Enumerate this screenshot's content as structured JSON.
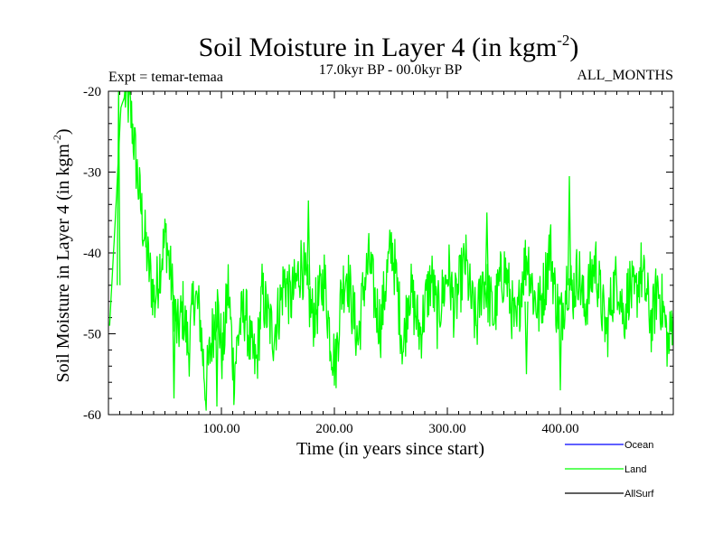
{
  "chart_data": {
    "type": "line",
    "title": "Soil Moisture in Layer 4 (in kgm",
    "title_sup": "-2",
    "title_close": ")",
    "subtitle_left": "Expt = temar-temaa",
    "subtitle_center": "17.0kyr BP - 00.0kyr BP",
    "subtitle_right": "ALL_MONTHS",
    "xlabel": "Time (in years since start)",
    "ylabel": "Soil Moisture in Layer 4 (in kgm",
    "ylabel_sup": "-2",
    "ylabel_close": ")",
    "xlim": [
      0,
      500
    ],
    "ylim": [
      -60,
      -20
    ],
    "x_ticks": [
      {
        "value": 100,
        "label": "100.00"
      },
      {
        "value": 200,
        "label": "200.00"
      },
      {
        "value": 300,
        "label": "300.00"
      },
      {
        "value": 400,
        "label": "400.00"
      }
    ],
    "y_ticks": [
      {
        "value": -20,
        "label": "-20"
      },
      {
        "value": -30,
        "label": "-30"
      },
      {
        "value": -40,
        "label": "-40"
      },
      {
        "value": -50,
        "label": "-50"
      },
      {
        "value": -60,
        "label": "-60"
      }
    ],
    "legend": [
      {
        "name": "Ocean",
        "color": "#0000ff"
      },
      {
        "name": "Land",
        "color": "#00ff00"
      },
      {
        "name": "AllSurf",
        "color": "#000000"
      }
    ],
    "series": [
      {
        "name": "Land",
        "color": "#00ff00",
        "x_start": 1,
        "x_step": 5,
        "values": [
          -49,
          -36,
          -22,
          -20,
          -24,
          -31,
          -37,
          -42,
          -46,
          -41,
          -38,
          -44,
          -50,
          -47,
          -52,
          -45,
          -48,
          -57,
          -51,
          -46,
          -53,
          -44,
          -55,
          -49,
          -47,
          -52,
          -54,
          -45,
          -48,
          -50,
          -47,
          -43,
          -46,
          -44,
          -41,
          -45,
          -48,
          -46,
          -43,
          -50,
          -54,
          -45,
          -42,
          -47,
          -51,
          -44,
          -41,
          -46,
          -49,
          -43,
          -39,
          -45,
          -52,
          -44,
          -47,
          -50,
          -46,
          -43,
          -48,
          -45,
          -42,
          -47,
          -44,
          -41,
          -46,
          -49,
          -43,
          -45,
          -48,
          -44,
          -42,
          -46,
          -50,
          -43,
          -40,
          -45,
          -47,
          -44,
          -39,
          -46,
          -48,
          -43,
          -45,
          -42,
          -47,
          -44,
          -41,
          -46,
          -50,
          -45,
          -43,
          -48,
          -44,
          -46,
          -42,
          -45,
          -49,
          -44,
          -47,
          -52,
          -45
        ]
      }
    ],
    "peaks": [
      {
        "x": 9,
        "y": -20
      },
      {
        "x": 58,
        "y": -58
      },
      {
        "x": 96,
        "y": -59
      },
      {
        "x": 177,
        "y": -33.5
      },
      {
        "x": 335,
        "y": -35
      },
      {
        "x": 370,
        "y": -55
      },
      {
        "x": 400,
        "y": -57
      },
      {
        "x": 408,
        "y": -30.5
      }
    ]
  }
}
